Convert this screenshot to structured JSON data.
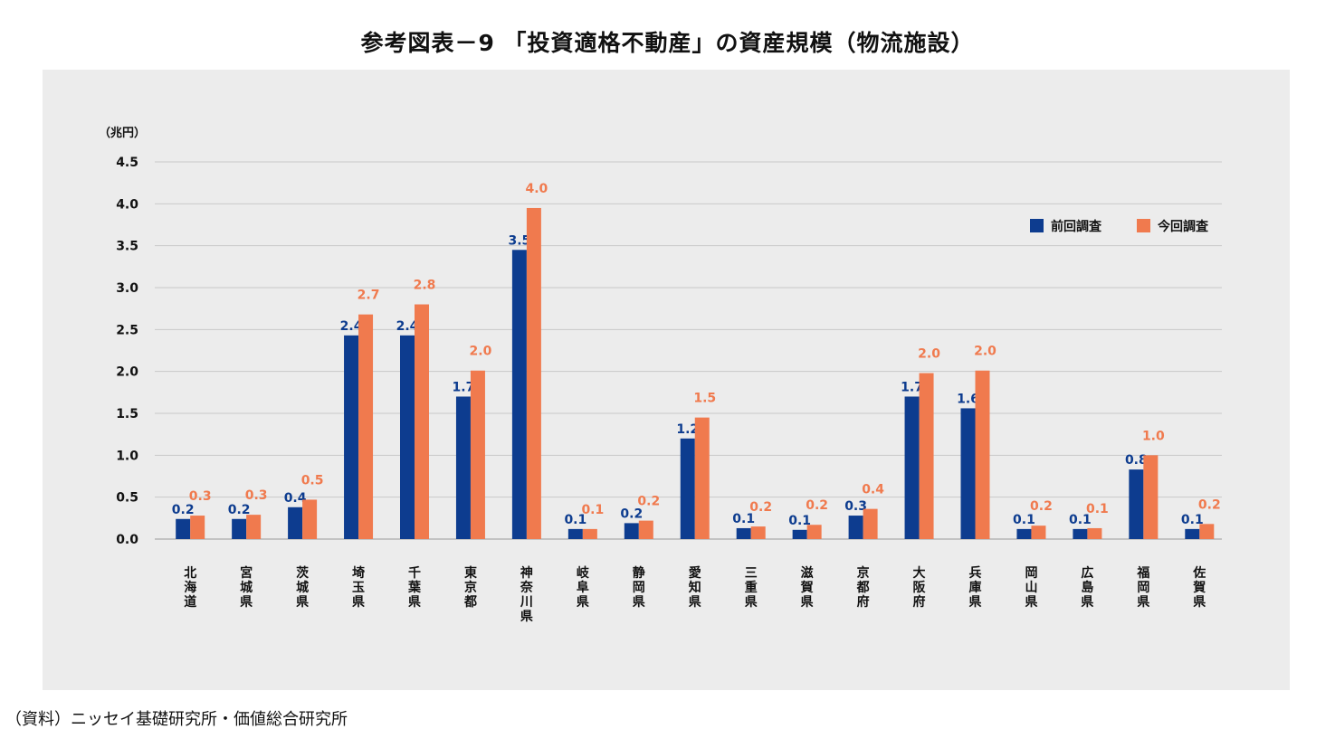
{
  "title": "参考図表－9 「投資適格不動産」の資産規模（物流施設）",
  "source": "（資料）ニッセイ基礎研究所・価値総合研究所",
  "chart_data": {
    "type": "bar",
    "unit_label": "（兆円）",
    "ylim": [
      0,
      4.5
    ],
    "yticks": [
      "0.0",
      "0.5",
      "1.0",
      "1.5",
      "2.0",
      "2.5",
      "3.0",
      "3.5",
      "4.0",
      "4.5"
    ],
    "grid": true,
    "legend_position": "top-right",
    "categories": [
      "北海道",
      "宮城県",
      "茨城県",
      "埼玉県",
      "千葉県",
      "東京都",
      "神奈川県",
      "岐阜県",
      "静岡県",
      "愛知県",
      "三重県",
      "滋賀県",
      "京都府",
      "大阪府",
      "兵庫県",
      "岡山県",
      "広島県",
      "福岡県",
      "佐賀県"
    ],
    "series": [
      {
        "name": "前回調査",
        "color": "#0d3c8f",
        "values": [
          0.24,
          0.24,
          0.38,
          2.43,
          2.43,
          1.7,
          3.45,
          0.12,
          0.19,
          1.2,
          0.13,
          0.11,
          0.28,
          1.7,
          1.56,
          0.12,
          0.12,
          0.83,
          0.12
        ],
        "labels": [
          "0.2",
          "0.2",
          "0.4",
          "2.4",
          "2.4",
          "1.7",
          "3.5",
          "0.1",
          "0.2",
          "1.2",
          "0.1",
          "0.1",
          "0.3",
          "1.7",
          "1.6",
          "0.1",
          "0.1",
          "0.8",
          "0.1"
        ]
      },
      {
        "name": "今回調査",
        "color": "#f07a4e",
        "values": [
          0.28,
          0.29,
          0.47,
          2.68,
          2.8,
          2.01,
          3.95,
          0.12,
          0.22,
          1.45,
          0.15,
          0.17,
          0.36,
          1.98,
          2.01,
          0.16,
          0.13,
          1.0,
          0.18
        ],
        "labels": [
          "0.3",
          "0.3",
          "0.5",
          "2.7",
          "2.8",
          "2.0",
          "4.0",
          "0.1",
          "0.2",
          "1.5",
          "0.2",
          "0.2",
          "0.4",
          "2.0",
          "2.0",
          "0.2",
          "0.1",
          "1.0",
          "0.2"
        ]
      }
    ]
  }
}
